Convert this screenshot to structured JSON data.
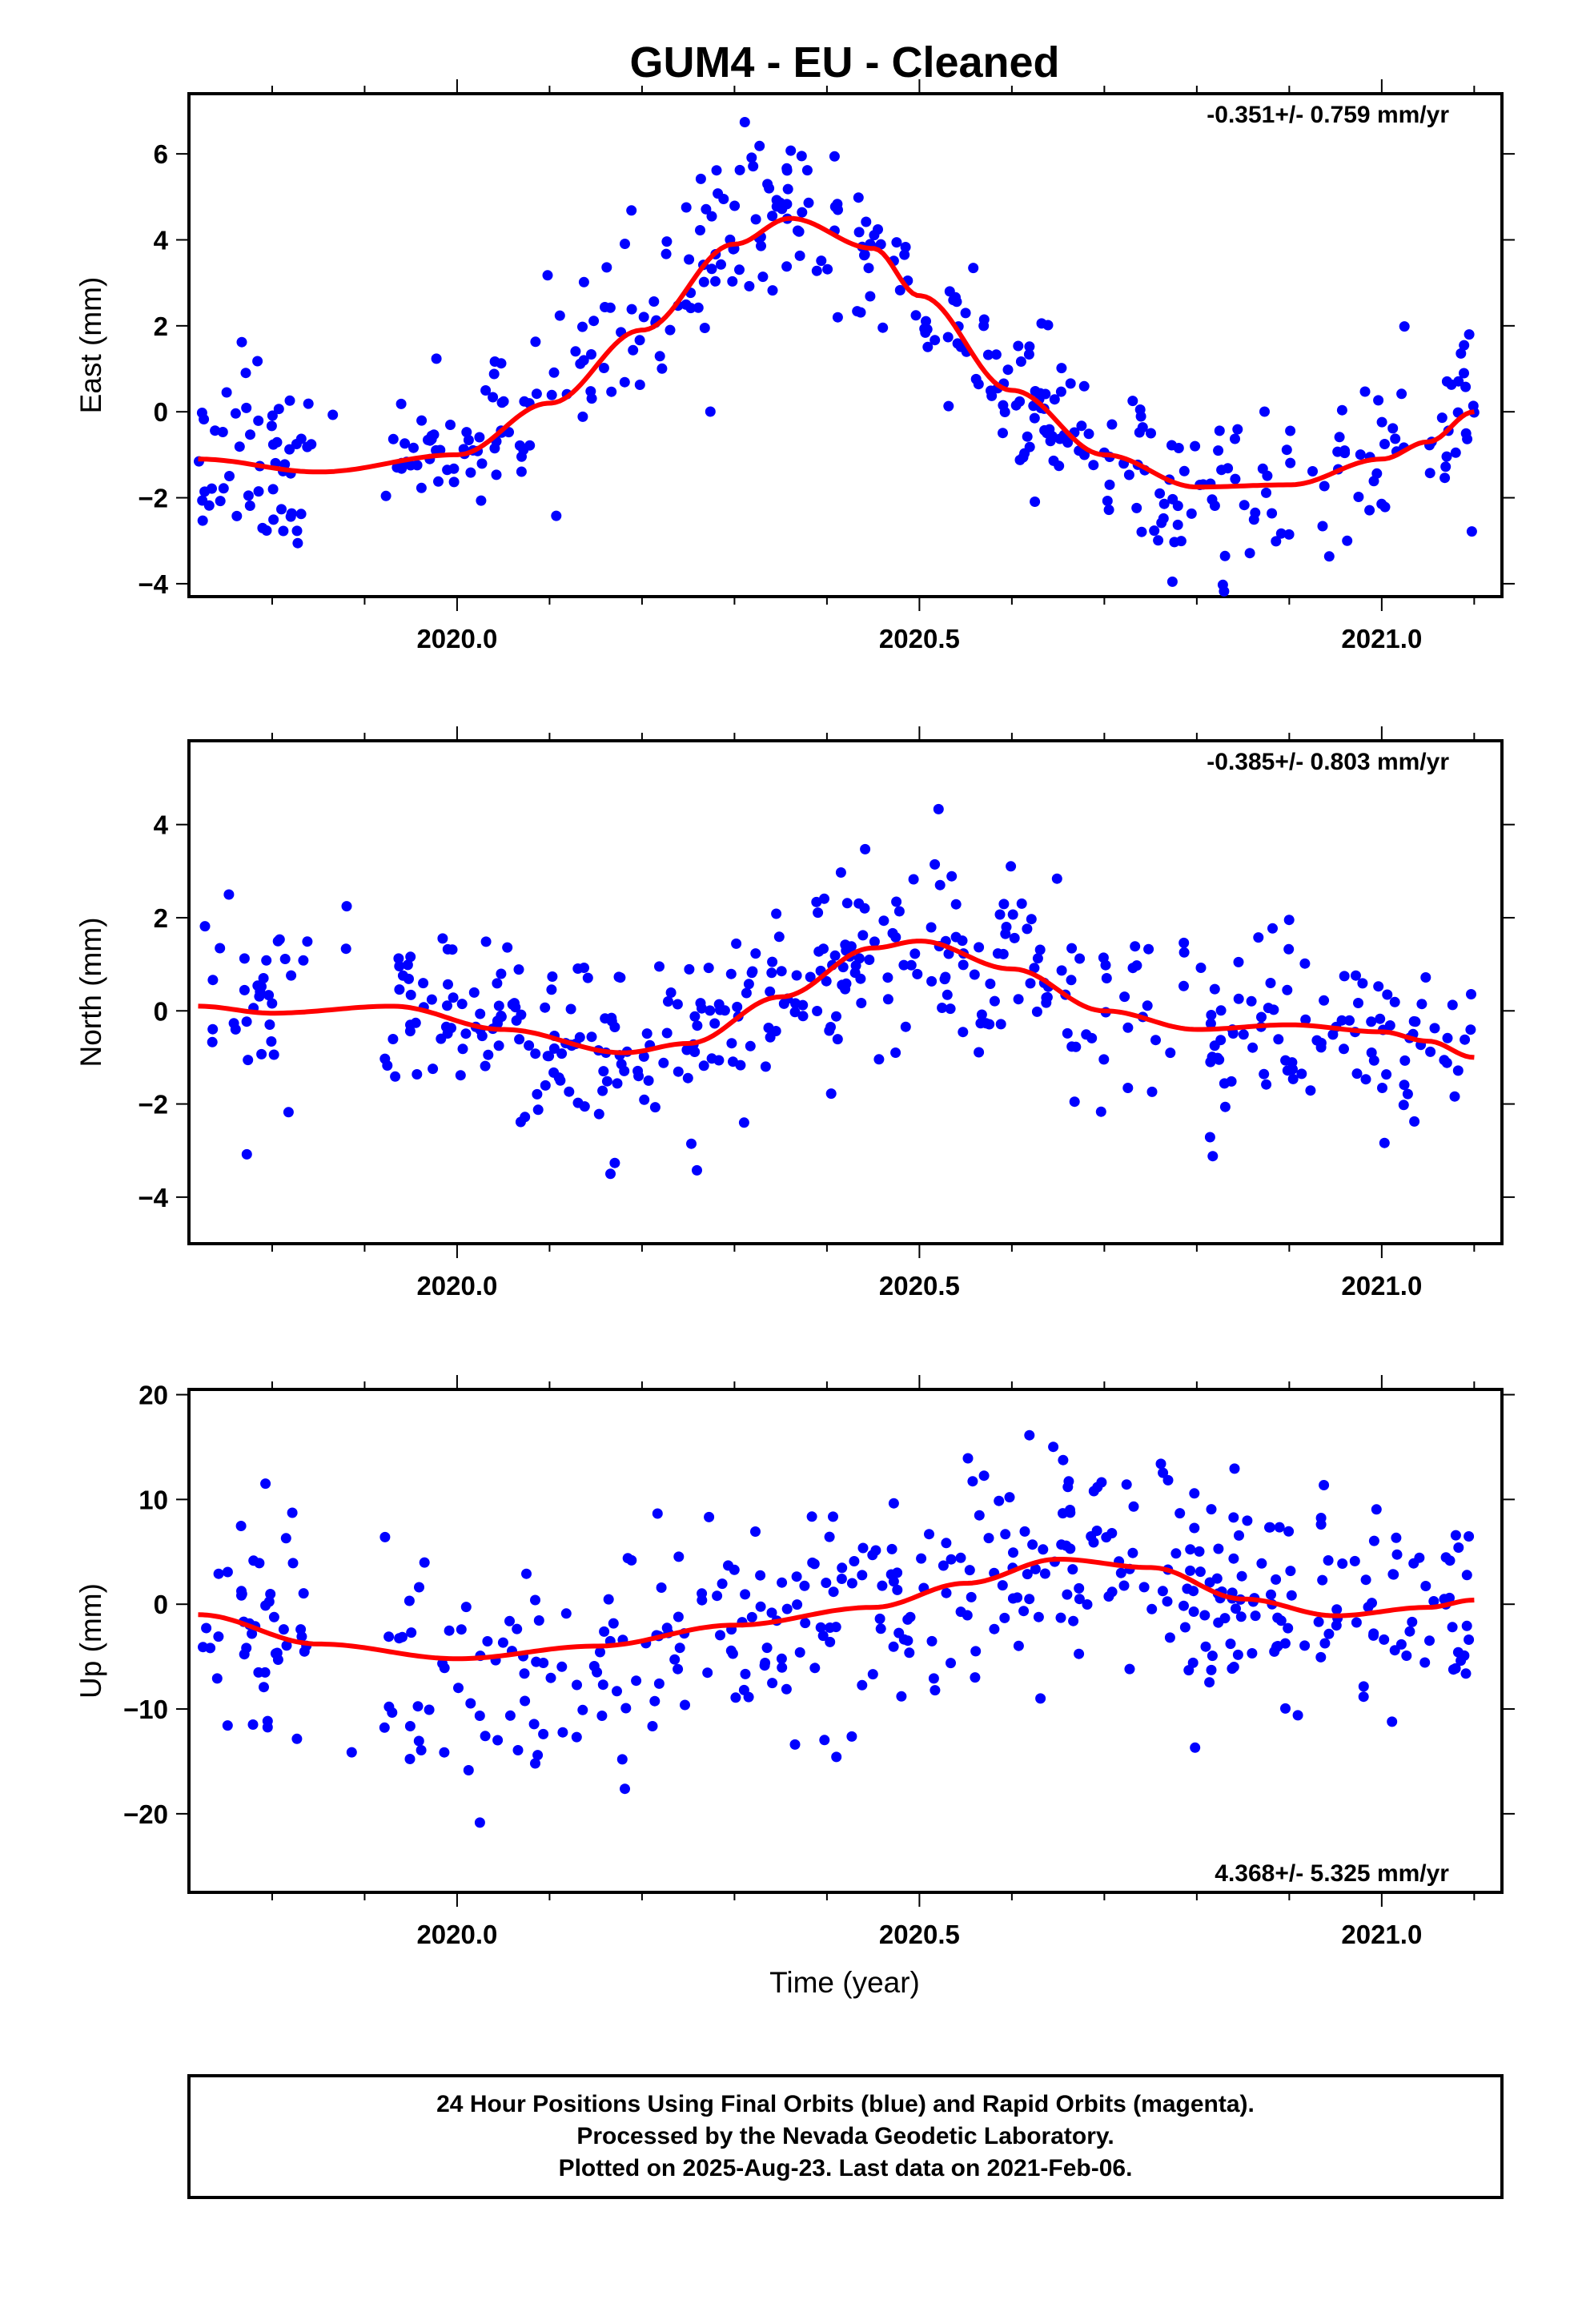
{
  "title": "GUM4  - EU - Cleaned",
  "colors": {
    "final_orbits": "#0000ff",
    "fit_curve": "#ff0000",
    "frame": "#000000"
  },
  "chart_data": [
    {
      "type": "scatter",
      "ylabel": "East (mm)",
      "xlim": [
        2019.71,
        2021.13
      ],
      "ylim": [
        -4.3,
        7.4
      ],
      "xticks": [
        2020.0,
        2020.5,
        2021.0
      ],
      "xtick_labels": [
        "2020.0",
        "2020.5",
        "2021.0"
      ],
      "yticks": [
        -4,
        -2,
        0,
        2,
        4,
        6
      ],
      "ytick_labels": [
        "−4",
        "−2",
        "0",
        "2",
        "4",
        "6"
      ],
      "rate_label": "-0.351+/- 0.759 mm/yr",
      "rate_position": "top-right",
      "fit": {
        "x": [
          2019.72,
          2019.85,
          2020.0,
          2020.1,
          2020.2,
          2020.3,
          2020.36,
          2020.45,
          2020.5,
          2020.6,
          2020.7,
          2020.8,
          2020.9,
          2021.0,
          2021.05,
          2021.1
        ],
        "y": [
          -1.1,
          -1.4,
          -1.0,
          0.2,
          1.9,
          3.9,
          4.5,
          3.8,
          2.7,
          0.5,
          -1.0,
          -1.75,
          -1.7,
          -1.1,
          -0.7,
          0.0
        ]
      },
      "noise_sd": 1.0,
      "n_points": 460
    },
    {
      "type": "scatter",
      "ylabel": "North (mm)",
      "xlim": [
        2019.71,
        2021.13
      ],
      "ylim": [
        -5.0,
        5.8
      ],
      "xticks": [
        2020.0,
        2020.5,
        2021.0
      ],
      "xtick_labels": [
        "2020.0",
        "2020.5",
        "2021.0"
      ],
      "yticks": [
        -4,
        -2,
        0,
        2,
        4
      ],
      "ytick_labels": [
        "−4",
        "−2",
        "0",
        "2",
        "4"
      ],
      "rate_label": "-0.385+/- 0.803 mm/yr",
      "rate_position": "top-right",
      "fit": {
        "x": [
          2019.72,
          2019.8,
          2019.93,
          2020.05,
          2020.18,
          2020.25,
          2020.35,
          2020.45,
          2020.5,
          2020.6,
          2020.7,
          2020.8,
          2020.9,
          2021.0,
          2021.05,
          2021.1
        ],
        "y": [
          0.1,
          -0.05,
          0.1,
          -0.4,
          -0.9,
          -0.7,
          0.3,
          1.35,
          1.5,
          0.9,
          0.0,
          -0.4,
          -0.3,
          -0.45,
          -0.65,
          -1.0
        ]
      },
      "noise_sd": 1.05,
      "n_points": 460
    },
    {
      "type": "scatter",
      "ylabel": "Up (mm)",
      "xlabel": "Time (year)",
      "xlim": [
        2019.71,
        2021.13
      ],
      "ylim": [
        -27.5,
        20.5
      ],
      "xticks": [
        2020.0,
        2020.5,
        2021.0
      ],
      "xtick_labels": [
        "2020.0",
        "2020.5",
        "2021.0"
      ],
      "yticks": [
        -20,
        -10,
        0,
        10,
        20
      ],
      "ytick_labels": [
        "−20",
        "−10",
        "0",
        "10",
        "20"
      ],
      "rate_label": "4.368+/- 5.325 mm/yr",
      "rate_position": "bottom-right",
      "fit": {
        "x": [
          2019.72,
          2019.85,
          2020.0,
          2020.15,
          2020.3,
          2020.45,
          2020.55,
          2020.65,
          2020.75,
          2020.85,
          2020.95,
          2021.05,
          2021.1
        ],
        "y": [
          -1.0,
          -3.8,
          -5.2,
          -4.0,
          -2.0,
          -0.3,
          2.0,
          4.3,
          3.5,
          0.5,
          -1.1,
          -0.3,
          0.4
        ]
      },
      "noise_sd": 5.5,
      "n_points": 460
    }
  ],
  "footer": {
    "lines": [
      "24 Hour Positions Using Final Orbits (blue) and Rapid Orbits (magenta).",
      "Processed by the Nevada Geodetic Laboratory.",
      "Plotted on 2025-Aug-23. Last data on 2021-Feb-06."
    ]
  }
}
